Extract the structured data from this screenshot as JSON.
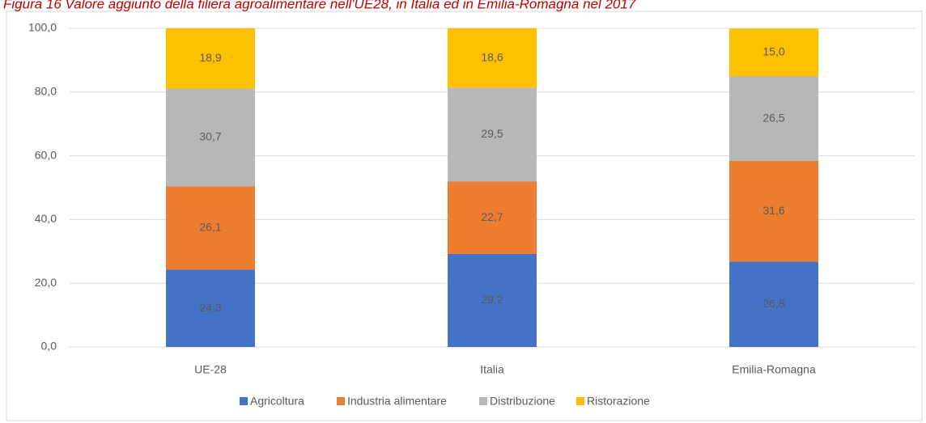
{
  "chart_data": {
    "type": "bar",
    "stacked": true,
    "title": "Figura 16 Valore aggiunto della filiera agroalimentare nell'UE28, in Italia ed in Emilia-Romagna nel 2017",
    "categories": [
      "UE-28",
      "Italia",
      "Emilia-Romagna"
    ],
    "series": [
      {
        "name": "Agricoltura",
        "color": "#4472c4",
        "values": [
          24.3,
          29.2,
          26.8
        ],
        "value_labels": [
          "24,3",
          "29,2",
          "26,8"
        ]
      },
      {
        "name": "Industria alimentare",
        "color": "#ed7d31",
        "values": [
          26.1,
          22.7,
          31.6
        ],
        "value_labels": [
          "26,1",
          "22,7",
          "31,6"
        ]
      },
      {
        "name": "Distribuzione",
        "color": "#b7b7b7",
        "values": [
          30.7,
          29.5,
          26.5
        ],
        "value_labels": [
          "30,7",
          "29,5",
          "26,5"
        ]
      },
      {
        "name": "Ristorazione",
        "color": "#ffc000",
        "values": [
          18.9,
          18.6,
          15.0
        ],
        "value_labels": [
          "18,9",
          "18,6",
          "15,0"
        ]
      }
    ],
    "ylim": [
      0,
      100
    ],
    "yticks": [
      {
        "value": 0,
        "label": "0,0"
      },
      {
        "value": 20,
        "label": "20,0"
      },
      {
        "value": 40,
        "label": "40,0"
      },
      {
        "value": 60,
        "label": "60,0"
      },
      {
        "value": 80,
        "label": "80,0"
      },
      {
        "value": 100,
        "label": "100,0"
      }
    ],
    "grid": true,
    "legend": "bottom"
  }
}
